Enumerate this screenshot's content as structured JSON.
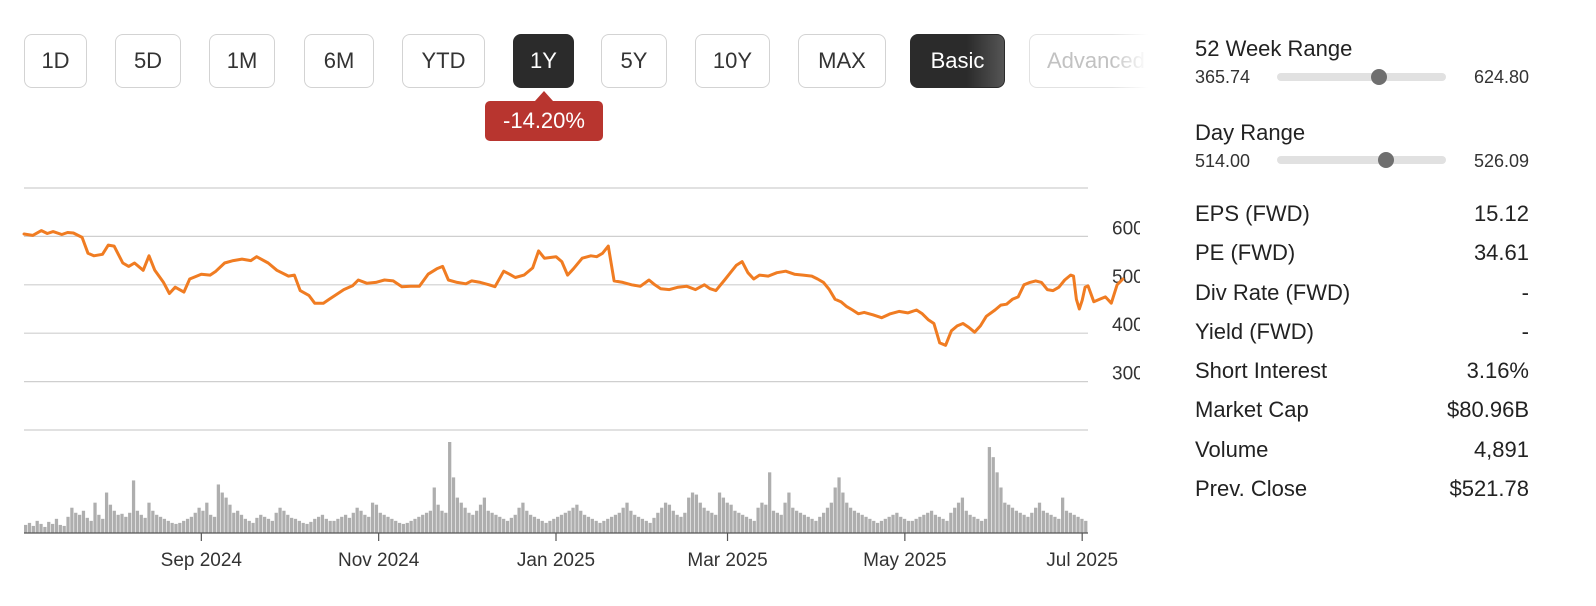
{
  "range_buttons": [
    "1D",
    "5D",
    "1M",
    "6M",
    "YTD",
    "1Y",
    "5Y",
    "10Y",
    "MAX"
  ],
  "active_range": "1Y",
  "view_modes": {
    "basic": "Basic",
    "advanced": "Advanced"
  },
  "active_view": "Basic",
  "change_badge": {
    "text": "-14.20%",
    "color": "#b8352f"
  },
  "colors": {
    "line": "#f07c22",
    "volume": "#aeaeae",
    "grid": "#cfcfcf",
    "active_button": "#2b2b2b"
  },
  "chart_data": {
    "type": "line",
    "xlabel": "",
    "ylabel": "",
    "x_tick_labels": [
      "Sep 2024",
      "Nov 2024",
      "Jan 2025",
      "Mar 2025",
      "May 2025",
      "Jul 2025"
    ],
    "x_tick_dates": [
      "2024-09-01",
      "2024-11-01",
      "2025-01-01",
      "2025-03-01",
      "2025-05-01",
      "2025-07-01"
    ],
    "x_range": [
      "2024-07-02",
      "2025-07-03"
    ],
    "y_ticks": [
      300,
      400,
      500,
      600
    ],
    "ylim": [
      200,
      700
    ],
    "grid": true,
    "series": [
      {
        "values": [
          [
            "2024-07-02",
            605
          ],
          [
            "2024-07-05",
            602
          ],
          [
            "2024-07-08",
            612
          ],
          [
            "2024-07-10",
            606
          ],
          [
            "2024-07-12",
            610
          ],
          [
            "2024-07-15",
            604
          ],
          [
            "2024-07-17",
            608
          ],
          [
            "2024-07-19",
            607
          ],
          [
            "2024-07-22",
            598
          ],
          [
            "2024-07-24",
            565
          ],
          [
            "2024-07-26",
            560
          ],
          [
            "2024-07-29",
            563
          ],
          [
            "2024-07-31",
            582
          ],
          [
            "2024-08-02",
            580
          ],
          [
            "2024-08-05",
            545
          ],
          [
            "2024-08-07",
            538
          ],
          [
            "2024-08-09",
            545
          ],
          [
            "2024-08-12",
            530
          ],
          [
            "2024-08-14",
            560
          ],
          [
            "2024-08-16",
            530
          ],
          [
            "2024-08-19",
            505
          ],
          [
            "2024-08-21",
            482
          ],
          [
            "2024-08-23",
            495
          ],
          [
            "2024-08-26",
            485
          ],
          [
            "2024-08-28",
            512
          ],
          [
            "2024-09-01",
            522
          ],
          [
            "2024-09-04",
            520
          ],
          [
            "2024-09-06",
            528
          ],
          [
            "2024-09-09",
            545
          ],
          [
            "2024-09-12",
            550
          ],
          [
            "2024-09-15",
            553
          ],
          [
            "2024-09-18",
            550
          ],
          [
            "2024-09-20",
            558
          ],
          [
            "2024-09-24",
            545
          ],
          [
            "2024-09-27",
            530
          ],
          [
            "2024-10-01",
            518
          ],
          [
            "2024-10-03",
            520
          ],
          [
            "2024-10-05",
            488
          ],
          [
            "2024-10-08",
            478
          ],
          [
            "2024-10-10",
            462
          ],
          [
            "2024-10-13",
            462
          ],
          [
            "2024-10-15",
            470
          ],
          [
            "2024-10-17",
            478
          ],
          [
            "2024-10-20",
            490
          ],
          [
            "2024-10-23",
            498
          ],
          [
            "2024-10-25",
            510
          ],
          [
            "2024-10-28",
            503
          ],
          [
            "2024-10-31",
            505
          ],
          [
            "2024-11-03",
            510
          ],
          [
            "2024-11-06",
            508
          ],
          [
            "2024-11-09",
            496
          ],
          [
            "2024-11-12",
            497
          ],
          [
            "2024-11-15",
            497
          ],
          [
            "2024-11-18",
            522
          ],
          [
            "2024-11-21",
            533
          ],
          [
            "2024-11-23",
            538
          ],
          [
            "2024-11-25",
            510
          ],
          [
            "2024-11-28",
            505
          ],
          [
            "2024-12-01",
            502
          ],
          [
            "2024-12-03",
            508
          ],
          [
            "2024-12-06",
            505
          ],
          [
            "2024-12-09",
            500
          ],
          [
            "2024-12-11",
            496
          ],
          [
            "2024-12-14",
            528
          ],
          [
            "2024-12-16",
            522
          ],
          [
            "2024-12-18",
            515
          ],
          [
            "2024-12-21",
            520
          ],
          [
            "2024-12-24",
            535
          ],
          [
            "2024-12-26",
            570
          ],
          [
            "2024-12-28",
            555
          ],
          [
            "2025-01-01",
            558
          ],
          [
            "2025-01-03",
            548
          ],
          [
            "2025-01-05",
            520
          ],
          [
            "2025-01-07",
            533
          ],
          [
            "2025-01-10",
            555
          ],
          [
            "2025-01-13",
            560
          ],
          [
            "2025-01-15",
            558
          ],
          [
            "2025-01-17",
            565
          ],
          [
            "2025-01-19",
            580
          ],
          [
            "2025-01-21",
            508
          ],
          [
            "2025-01-24",
            505
          ],
          [
            "2025-01-27",
            500
          ],
          [
            "2025-01-30",
            497
          ],
          [
            "2025-02-02",
            510
          ],
          [
            "2025-02-04",
            500
          ],
          [
            "2025-02-06",
            492
          ],
          [
            "2025-02-09",
            490
          ],
          [
            "2025-02-12",
            495
          ],
          [
            "2025-02-15",
            497
          ],
          [
            "2025-02-18",
            490
          ],
          [
            "2025-02-21",
            500
          ],
          [
            "2025-02-23",
            492
          ],
          [
            "2025-02-25",
            488
          ],
          [
            "2025-02-28",
            510
          ],
          [
            "2025-03-02",
            525
          ],
          [
            "2025-03-04",
            540
          ],
          [
            "2025-03-06",
            548
          ],
          [
            "2025-03-08",
            525
          ],
          [
            "2025-03-10",
            512
          ],
          [
            "2025-03-12",
            520
          ],
          [
            "2025-03-15",
            518
          ],
          [
            "2025-03-18",
            525
          ],
          [
            "2025-03-21",
            528
          ],
          [
            "2025-03-24",
            522
          ],
          [
            "2025-03-27",
            520
          ],
          [
            "2025-03-30",
            518
          ],
          [
            "2025-04-01",
            512
          ],
          [
            "2025-04-03",
            505
          ],
          [
            "2025-04-05",
            490
          ],
          [
            "2025-04-07",
            470
          ],
          [
            "2025-04-09",
            465
          ],
          [
            "2025-04-11",
            455
          ],
          [
            "2025-04-13",
            448
          ],
          [
            "2025-04-15",
            440
          ],
          [
            "2025-04-17",
            443
          ],
          [
            "2025-04-20",
            438
          ],
          [
            "2025-04-23",
            432
          ],
          [
            "2025-04-26",
            440
          ],
          [
            "2025-04-29",
            445
          ],
          [
            "2025-05-02",
            442
          ],
          [
            "2025-05-05",
            448
          ],
          [
            "2025-05-07",
            440
          ],
          [
            "2025-05-09",
            428
          ],
          [
            "2025-05-11",
            420
          ],
          [
            "2025-05-12",
            400
          ],
          [
            "2025-05-13",
            380
          ],
          [
            "2025-05-15",
            375
          ],
          [
            "2025-05-17",
            405
          ],
          [
            "2025-05-19",
            415
          ],
          [
            "2025-05-21",
            420
          ],
          [
            "2025-05-23",
            412
          ],
          [
            "2025-05-25",
            402
          ],
          [
            "2025-05-27",
            415
          ],
          [
            "2025-05-29",
            435
          ],
          [
            "2025-06-01",
            448
          ],
          [
            "2025-06-03",
            458
          ],
          [
            "2025-06-05",
            460
          ],
          [
            "2025-06-07",
            470
          ],
          [
            "2025-06-09",
            475
          ],
          [
            "2025-06-11",
            500
          ],
          [
            "2025-06-13",
            505
          ],
          [
            "2025-06-15",
            508
          ],
          [
            "2025-06-17",
            505
          ],
          [
            "2025-06-19",
            490
          ],
          [
            "2025-06-21",
            488
          ],
          [
            "2025-06-23",
            495
          ],
          [
            "2025-06-25",
            510
          ],
          [
            "2025-06-27",
            520
          ],
          [
            "2025-06-28",
            518
          ],
          [
            "2025-06-29",
            470
          ],
          [
            "2025-06-30",
            450
          ],
          [
            "2025-07-01",
            468
          ],
          [
            "2025-07-02",
            495
          ],
          [
            "2025-07-03",
            498
          ],
          [
            "2025-07-05",
            465
          ],
          [
            "2025-07-07",
            470
          ],
          [
            "2025-07-09",
            475
          ],
          [
            "2025-07-11",
            462
          ],
          [
            "2025-07-13",
            500
          ],
          [
            "2025-07-15",
            512
          ]
        ]
      }
    ],
    "volume": [
      8,
      10,
      7,
      12,
      9,
      6,
      11,
      9,
      14,
      8,
      7,
      16,
      25,
      20,
      18,
      22,
      15,
      12,
      30,
      18,
      14,
      40,
      28,
      22,
      18,
      19,
      16,
      20,
      52,
      22,
      18,
      15,
      30,
      22,
      18,
      16,
      14,
      12,
      10,
      9,
      10,
      12,
      14,
      16,
      20,
      25,
      22,
      30,
      18,
      16,
      48,
      40,
      35,
      28,
      20,
      22,
      18,
      14,
      12,
      10,
      15,
      18,
      16,
      14,
      12,
      20,
      25,
      22,
      18,
      15,
      14,
      12,
      10,
      9,
      11,
      14,
      16,
      18,
      14,
      12,
      12,
      14,
      16,
      18,
      15,
      20,
      25,
      22,
      18,
      16,
      30,
      28,
      20,
      18,
      16,
      14,
      12,
      10,
      9,
      10,
      12,
      14,
      16,
      18,
      20,
      22,
      45,
      28,
      22,
      20,
      90,
      55,
      35,
      30,
      25,
      20,
      18,
      22,
      28,
      35,
      22,
      20,
      18,
      16,
      14,
      12,
      15,
      18,
      25,
      30,
      22,
      18,
      16,
      14,
      12,
      10,
      12,
      14,
      16,
      18,
      20,
      22,
      25,
      28,
      22,
      18,
      16,
      14,
      12,
      10,
      12,
      14,
      16,
      18,
      20,
      25,
      30,
      22,
      18,
      16,
      14,
      12,
      10,
      15,
      20,
      25,
      30,
      28,
      22,
      18,
      16,
      20,
      35,
      40,
      38,
      30,
      25,
      22,
      20,
      18,
      40,
      35,
      30,
      28,
      22,
      20,
      18,
      16,
      14,
      12,
      25,
      30,
      28,
      60,
      22,
      20,
      18,
      30,
      40,
      25,
      22,
      20,
      18,
      16,
      14,
      12,
      16,
      20,
      25,
      30,
      45,
      55,
      40,
      30,
      25,
      22,
      20,
      18,
      16,
      14,
      12,
      10,
      12,
      14,
      16,
      18,
      20,
      16,
      14,
      12,
      12,
      14,
      16,
      18,
      20,
      22,
      18,
      16,
      14,
      12,
      20,
      25,
      30,
      35,
      22,
      18,
      16,
      14,
      12,
      14,
      85,
      75,
      60,
      45,
      30,
      28,
      25,
      22,
      20,
      18,
      16,
      20,
      25,
      30,
      22,
      20,
      18,
      16,
      14,
      35,
      22,
      20,
      18,
      16,
      14,
      12
    ]
  },
  "stats_panel": {
    "week52": {
      "title": "52 Week Range",
      "low": "365.74",
      "high": "624.80",
      "low_value": 365.74,
      "high_value": 624.8,
      "current_value": 521.78
    },
    "day": {
      "title": "Day Range",
      "low": "514.00",
      "high": "526.09",
      "low_value": 514.0,
      "high_value": 526.09,
      "current_value": 521.78
    },
    "rows": [
      {
        "label": "EPS (FWD)",
        "value": "15.12"
      },
      {
        "label": "PE (FWD)",
        "value": "34.61"
      },
      {
        "label": "Div Rate (FWD)",
        "value": "-"
      },
      {
        "label": "Yield (FWD)",
        "value": "-"
      },
      {
        "label": "Short Interest",
        "value": "3.16%"
      },
      {
        "label": "Market Cap",
        "value": "$80.96B"
      },
      {
        "label": "Volume",
        "value": "4,891"
      },
      {
        "label": "Prev. Close",
        "value": "$521.78"
      }
    ]
  }
}
